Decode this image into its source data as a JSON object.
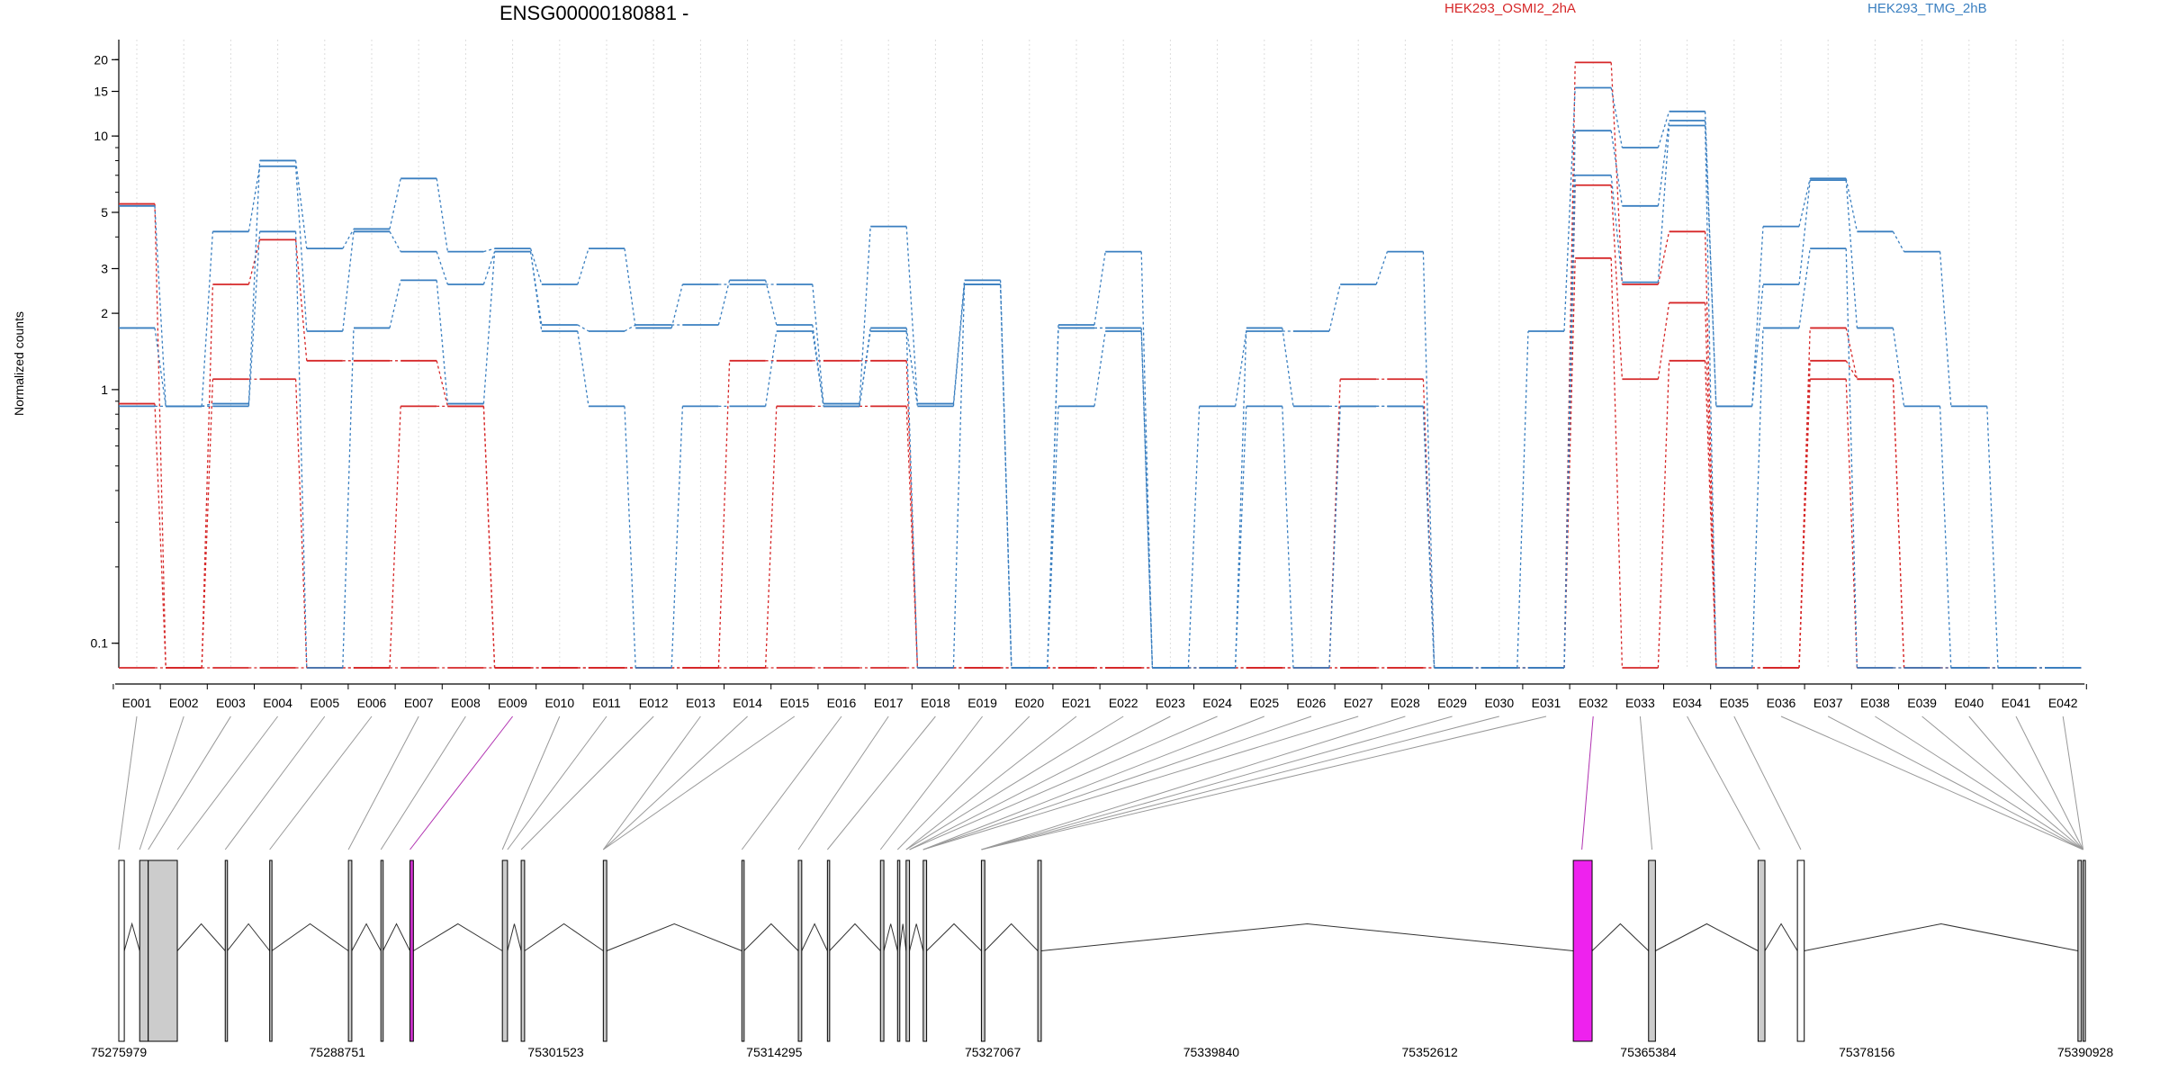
{
  "chart_data": {
    "type": "line",
    "title": "ENSG00000180881 -",
    "ylabel": "Normalized counts",
    "y_scale": "log",
    "ylim": [
      0.08,
      24
    ],
    "y_ticks": [
      {
        "value": 0.1,
        "label": "0.1"
      },
      {
        "value": 1,
        "label": "1"
      },
      {
        "value": 2,
        "label": "2"
      },
      {
        "value": 3,
        "label": "3"
      },
      {
        "value": 5,
        "label": "5"
      },
      {
        "value": 10,
        "label": "10"
      },
      {
        "value": 15,
        "label": "15"
      },
      {
        "value": 20,
        "label": "20"
      }
    ],
    "grid": "vertical",
    "legend_position": "top",
    "categories": [
      "E001",
      "E002",
      "E003",
      "E004",
      "E005",
      "E006",
      "E007",
      "E008",
      "E009",
      "E010",
      "E011",
      "E012",
      "E013",
      "E014",
      "E015",
      "E016",
      "E017",
      "E018",
      "E019",
      "E020",
      "E021",
      "E022",
      "E023",
      "E024",
      "E025",
      "E026",
      "E027",
      "E028",
      "E029",
      "E030",
      "E031",
      "E032",
      "E033",
      "E034",
      "E035",
      "E036",
      "E037",
      "E038",
      "E039",
      "E040",
      "E041",
      "E042"
    ],
    "groups": [
      {
        "name": "HEK293_OSMI2_2hA",
        "color": "#d62728"
      },
      {
        "name": "HEK293_TMG_2hB",
        "color": "#3a7fc0"
      }
    ],
    "series": [
      {
        "group": 0,
        "values": [
          5.4,
          0.08,
          2.6,
          3.9,
          1.3,
          1.3,
          1.3,
          0.86,
          0.08,
          0.08,
          0.08,
          0.08,
          0.08,
          0.08,
          0.08,
          0.08,
          0.08,
          0.08,
          0.08,
          0.08,
          0.08,
          0.08,
          0.08,
          0.08,
          0.08,
          0.08,
          0.08,
          0.08,
          0.08,
          0.08,
          0.08,
          19.5,
          2.6,
          4.2,
          0.08,
          0.08,
          1.75,
          1.1,
          0.08,
          0.08,
          0.08,
          0.08
        ]
      },
      {
        "group": 0,
        "values": [
          0.88,
          0.08,
          1.1,
          1.1,
          0.08,
          0.08,
          0.86,
          0.86,
          0.08,
          0.08,
          0.08,
          0.08,
          0.08,
          1.3,
          1.3,
          1.3,
          1.3,
          0.08,
          0.08,
          0.08,
          0.08,
          0.08,
          0.08,
          0.08,
          0.08,
          0.08,
          1.1,
          1.1,
          0.08,
          0.08,
          0.08,
          6.4,
          1.1,
          2.2,
          0.08,
          0.08,
          1.3,
          1.1,
          0.08,
          0.08,
          0.08,
          0.08
        ]
      },
      {
        "group": 0,
        "values": [
          0.08,
          0.08,
          0.08,
          0.08,
          0.08,
          0.08,
          0.08,
          0.08,
          0.08,
          0.08,
          0.08,
          0.08,
          0.08,
          0.08,
          0.86,
          0.86,
          0.86,
          0.08,
          0.08,
          0.08,
          0.08,
          0.08,
          0.08,
          0.08,
          0.08,
          0.08,
          0.08,
          0.08,
          0.08,
          0.08,
          0.08,
          3.3,
          0.08,
          1.3,
          0.08,
          0.08,
          1.1,
          0.08,
          0.08,
          0.08,
          0.08,
          0.08
        ]
      },
      {
        "group": 1,
        "values": [
          5.3,
          0.86,
          0.88,
          8.0,
          3.6,
          4.3,
          6.8,
          3.5,
          3.6,
          2.6,
          3.6,
          1.75,
          2.6,
          2.6,
          2.6,
          0.88,
          4.4,
          0.88,
          2.7,
          0.08,
          1.8,
          3.5,
          0.08,
          0.86,
          1.7,
          1.7,
          2.6,
          3.5,
          0.08,
          0.08,
          1.7,
          15.5,
          9.0,
          12.5,
          0.86,
          4.4,
          6.8,
          4.2,
          3.5,
          0.86,
          0.08,
          0.08
        ]
      },
      {
        "group": 1,
        "values": [
          1.75,
          0.86,
          4.2,
          7.6,
          1.7,
          4.2,
          3.5,
          2.6,
          3.5,
          1.8,
          1.7,
          1.8,
          1.8,
          2.7,
          1.8,
          0.86,
          1.75,
          0.86,
          2.6,
          0.08,
          1.75,
          1.75,
          0.08,
          0.08,
          1.75,
          0.86,
          0.86,
          0.86,
          0.08,
          0.08,
          0.08,
          10.5,
          5.3,
          11.5,
          0.86,
          2.6,
          6.7,
          1.75,
          0.86,
          0.08,
          0.08,
          0.08
        ]
      },
      {
        "group": 1,
        "values": [
          0.86,
          0.86,
          0.86,
          4.2,
          0.08,
          1.75,
          2.7,
          0.88,
          3.5,
          1.7,
          0.86,
          0.08,
          0.86,
          0.86,
          1.7,
          0.86,
          1.7,
          0.08,
          2.6,
          0.08,
          0.86,
          1.7,
          0.08,
          0.08,
          0.86,
          0.08,
          0.86,
          0.86,
          0.08,
          0.08,
          0.08,
          7.0,
          2.65,
          11.0,
          0.08,
          1.75,
          3.6,
          0.08,
          0.08,
          0.08,
          0.08,
          0.08
        ]
      }
    ],
    "gene_model": {
      "coordinate_labels": [
        "75275979",
        "75288751",
        "75301523",
        "75314295",
        "75327067",
        "75339840",
        "75352612",
        "75365384",
        "75378156",
        "75390928"
      ]
    }
  }
}
